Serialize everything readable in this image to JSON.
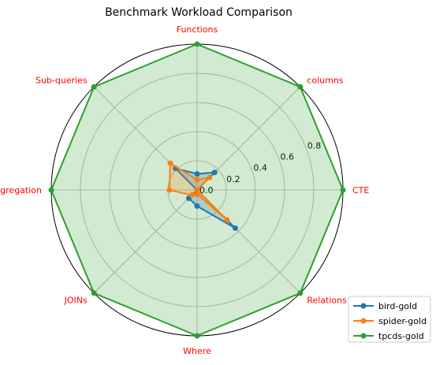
{
  "chart_data": {
    "type": "radar",
    "title": "Benchmark Workload Comparison",
    "axes": [
      "CTE",
      "columns",
      "Functions",
      "Sub-queries",
      "aggregation",
      "JOINs",
      "Where",
      "Relations"
    ],
    "radial_ticks": [
      "0.0",
      "0.2",
      "0.4",
      "0.6",
      "0.8"
    ],
    "radial_tick_values": [
      0.0,
      0.2,
      0.4,
      0.6,
      0.8
    ],
    "rlim": [
      0,
      1.0
    ],
    "grid": true,
    "legend_position": "bottom-right",
    "series": [
      {
        "name": "bird-gold",
        "color": "#1f77b4",
        "values": [
          0.0,
          0.17,
          0.11,
          0.21,
          0.0,
          0.08,
          0.11,
          0.37
        ],
        "fill": false
      },
      {
        "name": "spider-gold",
        "color": "#ff7f0e",
        "values": [
          0.0,
          0.12,
          0.07,
          0.26,
          0.19,
          0.05,
          0.03,
          0.29
        ],
        "fill": false
      },
      {
        "name": "tpcds-gold",
        "color": "#2ca02c",
        "values": [
          1.0,
          1.0,
          1.0,
          1.0,
          1.0,
          1.0,
          1.0,
          1.0
        ],
        "fill": true
      }
    ]
  }
}
